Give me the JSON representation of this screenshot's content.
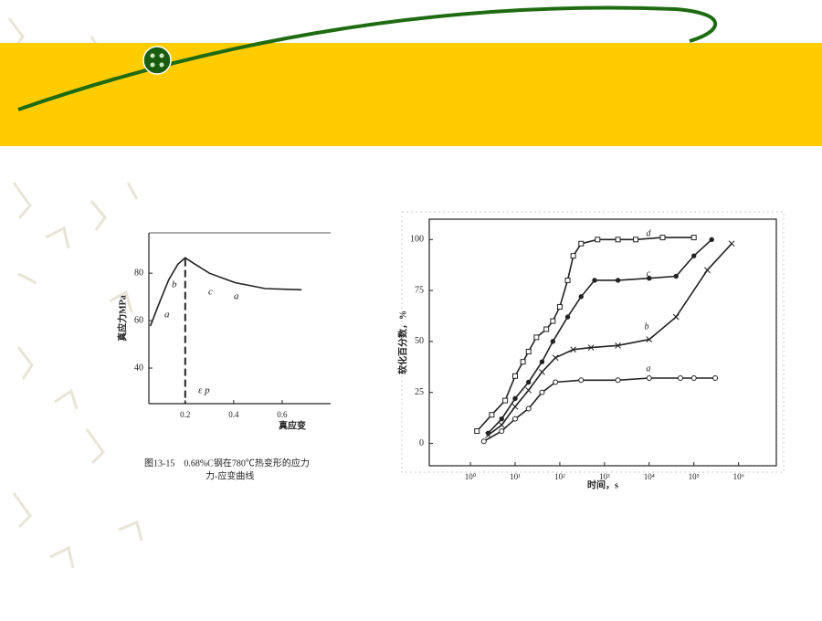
{
  "chart_data": [
    {
      "type": "line",
      "y_label": "真应力MPa",
      "x_label": "真应变",
      "caption": [
        "图13-15　0.68%C钢在780℃热变形的应力",
        "力-应变曲线"
      ],
      "annotations": [
        "a",
        "b",
        "c",
        "a",
        "ε p"
      ],
      "x": [
        0.056,
        0.094,
        0.132,
        0.17,
        0.2,
        0.234,
        0.3,
        0.406,
        0.53,
        0.68
      ],
      "values": [
        57.7,
        67.7,
        77.3,
        83.8,
        86.5,
        84.2,
        80,
        76,
        73.5,
        73
      ],
      "color": "#222222",
      "xlim": [
        0.05,
        0.8
      ],
      "ylim": [
        25,
        97
      ],
      "xticks": [
        0.2,
        0.4,
        0.6
      ],
      "yticks": [
        40,
        60,
        80
      ],
      "grid": false
    },
    {
      "type": "line",
      "y_label": "软化百分数，%",
      "x_label": "时间，s",
      "log_x": true,
      "grid": false,
      "xlim": [
        0.12,
        7000000
      ],
      "ylim": [
        -11,
        110
      ],
      "xticks": [
        {
          "value": 1,
          "label": "10⁰"
        },
        {
          "value": 10,
          "label": "10¹"
        },
        {
          "value": 100,
          "label": "10²"
        },
        {
          "value": 1000,
          "label": "10³"
        },
        {
          "value": 10000,
          "label": "10⁴"
        },
        {
          "value": 100000,
          "label": "10⁵"
        },
        {
          "value": 1000000,
          "label": "10⁶"
        }
      ],
      "yticks": [
        0,
        25,
        50,
        75,
        100
      ],
      "series": [
        {
          "name": "d",
          "color": "#222222",
          "marker": "square",
          "x": [
            1.4,
            3,
            6,
            10,
            15,
            20,
            30,
            50,
            70,
            100,
            150,
            200,
            300,
            700,
            2000,
            5000,
            20000,
            100000
          ],
          "values": [
            6,
            14,
            21,
            33,
            40,
            45,
            52,
            56,
            60,
            67,
            80,
            92,
            98,
            100,
            100,
            100,
            101,
            101
          ]
        },
        {
          "name": "c",
          "color": "#222222",
          "marker": "dot",
          "x": [
            2.5,
            5,
            10,
            20,
            40,
            70,
            150,
            300,
            600,
            2000,
            10000,
            40000,
            100000,
            250000
          ],
          "values": [
            5,
            12,
            22,
            30,
            40,
            50,
            62,
            72,
            80,
            80,
            81,
            82,
            92,
            100
          ]
        },
        {
          "name": "b",
          "color": "#222222",
          "marker": "cross",
          "x": [
            2.5,
            5,
            10,
            20,
            40,
            80,
            200,
            500,
            2000,
            10000,
            40000,
            200000,
            700000
          ],
          "values": [
            4,
            9,
            18,
            26,
            35,
            42,
            46,
            47,
            48,
            51,
            62,
            85,
            98
          ]
        },
        {
          "name": "a",
          "color": "#222222",
          "marker": "circle",
          "x": [
            2,
            5,
            10,
            20,
            40,
            80,
            300,
            2000,
            10000,
            50000,
            100000,
            300000
          ],
          "values": [
            1,
            6,
            12,
            17,
            25,
            30,
            31,
            31,
            32,
            32,
            32,
            32
          ]
        }
      ]
    }
  ]
}
